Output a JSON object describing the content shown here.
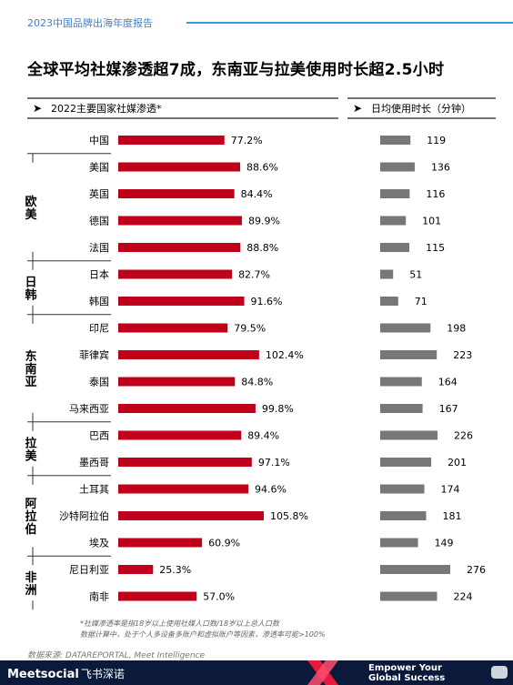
{
  "header": {
    "report_title": "2023中国品牌出海年度报告"
  },
  "title": "全球平均社媒渗透超7成，东南亚与拉美使用时长超2.5小时",
  "footnote_lines": [
    "*社媒渗透率是指18岁以上使用社媒人口数/18岁以上总人口数",
    "数据计算中，处于个人多设备多账户和虚拟账户等因素，渗透率可能>100%"
  ],
  "source": "数据来源: DATAREPORTAL, Meet Intelligence",
  "footer": {
    "logo": "Meetsocial",
    "logo_cn": "飞书深诺",
    "slogan_line1": "Empower Your",
    "slogan_line2": "Global Success"
  },
  "colors": {
    "penetration_bar": "#c0001a",
    "usage_bar": "#777777",
    "header_line": "#2f9fd6"
  },
  "chart_data": [
    {
      "type": "bar",
      "orientation": "horizontal",
      "title": "2022主要国家社媒渗透*",
      "categories": [
        "中国",
        "美国",
        "英国",
        "德国",
        "法国",
        "日本",
        "韩国",
        "印尼",
        "菲律宾",
        "泰国",
        "马来西亚",
        "巴西",
        "墨西哥",
        "土耳其",
        "沙特阿拉伯",
        "埃及",
        "尼日利亚",
        "南非"
      ],
      "values": [
        77.2,
        88.6,
        84.4,
        89.9,
        88.8,
        82.7,
        91.6,
        79.5,
        102.4,
        84.8,
        99.8,
        89.4,
        97.1,
        94.6,
        105.8,
        60.9,
        25.3,
        57.0
      ],
      "value_labels": [
        "77.2%",
        "88.6%",
        "84.4%",
        "89.9%",
        "88.8%",
        "82.7%",
        "91.6%",
        "79.5%",
        "102.4%",
        "84.8%",
        "99.8%",
        "89.4%",
        "97.1%",
        "94.6%",
        "105.8%",
        "60.9%",
        "25.3%",
        "57.0%"
      ],
      "unit": "%",
      "groups": [
        {
          "label": "欧美",
          "start": 1,
          "end": 4
        },
        {
          "label": "日韩",
          "start": 5,
          "end": 6
        },
        {
          "label": "东南亚",
          "start": 7,
          "end": 10
        },
        {
          "label": "拉美",
          "start": 11,
          "end": 12
        },
        {
          "label": "阿拉伯",
          "start": 13,
          "end": 15
        },
        {
          "label": "非洲",
          "start": 16,
          "end": 17
        }
      ]
    },
    {
      "type": "bar",
      "orientation": "horizontal",
      "title": "日均使用时长（分钟）",
      "categories": [
        "中国",
        "美国",
        "英国",
        "德国",
        "法国",
        "日本",
        "韩国",
        "印尼",
        "菲律宾",
        "泰国",
        "马来西亚",
        "巴西",
        "墨西哥",
        "土耳其",
        "沙特阿拉伯",
        "埃及",
        "尼日利亚",
        "南非"
      ],
      "values": [
        119,
        136,
        116,
        101,
        115,
        51,
        71,
        198,
        223,
        164,
        167,
        226,
        201,
        174,
        181,
        149,
        276,
        224
      ],
      "value_labels": [
        "119",
        "136",
        "116",
        "101",
        "115",
        "51",
        "71",
        "198",
        "223",
        "164",
        "167",
        "226",
        "201",
        "174",
        "181",
        "149",
        "276",
        "224"
      ]
    }
  ]
}
